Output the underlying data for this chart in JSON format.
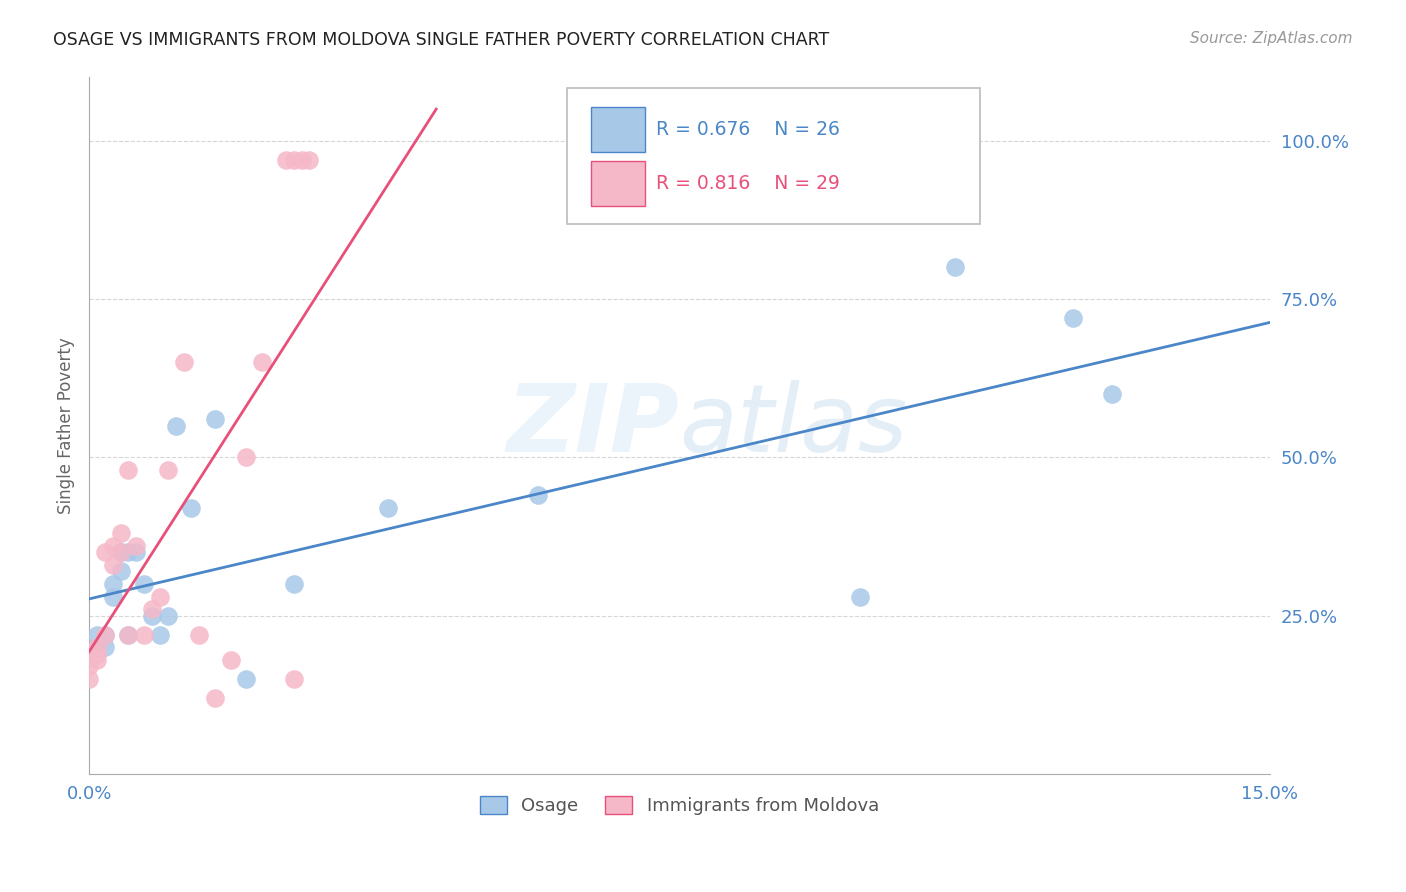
{
  "title": "OSAGE VS IMMIGRANTS FROM MOLDOVA SINGLE FATHER POVERTY CORRELATION CHART",
  "source": "Source: ZipAtlas.com",
  "ylabel": "Single Father Poverty",
  "x_min": 0.0,
  "x_max": 0.15,
  "y_min": 0.0,
  "y_max": 1.1,
  "x_ticks": [
    0.0,
    0.03,
    0.06,
    0.09,
    0.12,
    0.15
  ],
  "x_tick_labels": [
    "0.0%",
    "",
    "",
    "",
    "",
    "15.0%"
  ],
  "y_ticks": [
    0.25,
    0.5,
    0.75,
    1.0
  ],
  "y_tick_labels": [
    "25.0%",
    "50.0%",
    "75.0%",
    "100.0%"
  ],
  "legend_label1": "Osage",
  "legend_label2": "Immigrants from Moldova",
  "R1": "0.676",
  "N1": "26",
  "R2": "0.816",
  "N2": "29",
  "color_osage": "#a8c8e8",
  "color_moldova": "#f5b8c8",
  "color_osage_line": "#4a86c8",
  "color_moldova_line": "#e8507a",
  "color_text_blue": "#4a86c8",
  "color_text_pink": "#e8507a",
  "color_title": "#222222",
  "watermark": "ZIPatlas",
  "osage_x": [
    0.001,
    0.001,
    0.002,
    0.002,
    0.003,
    0.003,
    0.004,
    0.004,
    0.005,
    0.005,
    0.006,
    0.007,
    0.008,
    0.009,
    0.01,
    0.011,
    0.013,
    0.016,
    0.02,
    0.026,
    0.038,
    0.057,
    0.098,
    0.11,
    0.125,
    0.13
  ],
  "osage_y": [
    0.2,
    0.22,
    0.2,
    0.22,
    0.28,
    0.3,
    0.32,
    0.35,
    0.22,
    0.35,
    0.35,
    0.3,
    0.25,
    0.22,
    0.25,
    0.55,
    0.42,
    0.56,
    0.15,
    0.3,
    0.42,
    0.44,
    0.28,
    0.8,
    0.72,
    0.6
  ],
  "moldova_x": [
    0.0,
    0.0,
    0.001,
    0.001,
    0.001,
    0.002,
    0.002,
    0.003,
    0.003,
    0.004,
    0.004,
    0.005,
    0.005,
    0.006,
    0.007,
    0.008,
    0.009,
    0.01,
    0.012,
    0.014,
    0.016,
    0.018,
    0.02,
    0.022,
    0.025,
    0.026,
    0.026,
    0.027,
    0.028
  ],
  "moldova_y": [
    0.15,
    0.17,
    0.18,
    0.19,
    0.2,
    0.22,
    0.35,
    0.33,
    0.36,
    0.35,
    0.38,
    0.48,
    0.22,
    0.36,
    0.22,
    0.26,
    0.28,
    0.48,
    0.65,
    0.22,
    0.12,
    0.18,
    0.5,
    0.65,
    0.97,
    0.97,
    0.15,
    0.97,
    0.97
  ]
}
